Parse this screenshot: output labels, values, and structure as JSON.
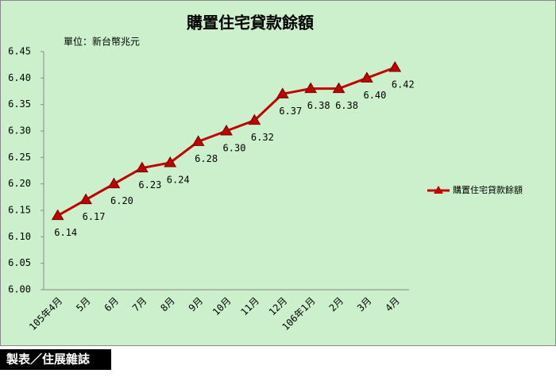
{
  "chart_data": {
    "type": "line",
    "title": "購置住宅貸款餘額",
    "subtitle": "單位：新台幣兆元",
    "categories": [
      "105年4月",
      "5月",
      "6月",
      "7月",
      "8月",
      "9月",
      "10月",
      "11月",
      "12月",
      "106年1月",
      "2月",
      "3月",
      "4月"
    ],
    "series": [
      {
        "name": "購置住宅貸款餘額",
        "color": "#c00000",
        "values": [
          6.14,
          6.17,
          6.2,
          6.23,
          6.24,
          6.28,
          6.3,
          6.32,
          6.37,
          6.38,
          6.38,
          6.4,
          6.42
        ],
        "value_labels": [
          "6.14",
          "6.17",
          "6.20",
          "6.23",
          "6.24",
          "6.28",
          "6.30",
          "6.32",
          "6.37",
          "6.38",
          "6.38",
          "6.40",
          "6.42"
        ]
      }
    ],
    "ylim": [
      6.0,
      6.45
    ],
    "yticks": [
      {
        "value": 6.0,
        "label": "6.00"
      },
      6.05,
      {
        "value": 6.1,
        "label": "6.10"
      },
      6.15,
      {
        "value": 6.2,
        "label": "6.20"
      },
      6.25,
      {
        "value": 6.3,
        "label": "6.30"
      },
      6.35,
      {
        "value": 6.4,
        "label": "6.40"
      },
      6.45
    ],
    "grid": false,
    "legend": "right",
    "source": "製表／住展雜誌"
  }
}
